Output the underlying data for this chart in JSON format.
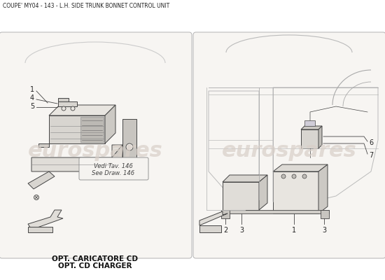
{
  "title": "COUPE' MY04 - 143 - L.H. SIDE TRUNK BONNET CONTROL UNIT",
  "bg_color": "#ffffff",
  "left_caption_line1": "OPT. CARICATORE CD",
  "left_caption_line2": "OPT. CD CHARGER",
  "left_note_line1": "Vedi Tav. 146",
  "left_note_line2": "See Draw. 146",
  "watermark": "eurospares",
  "title_fontsize": 5.5,
  "caption_fontsize": 7.5,
  "watermark_color": "#d8cfc8",
  "line_color": "#444444",
  "panel_fill": "#f7f5f2",
  "panel_border": "#bbbbbb"
}
